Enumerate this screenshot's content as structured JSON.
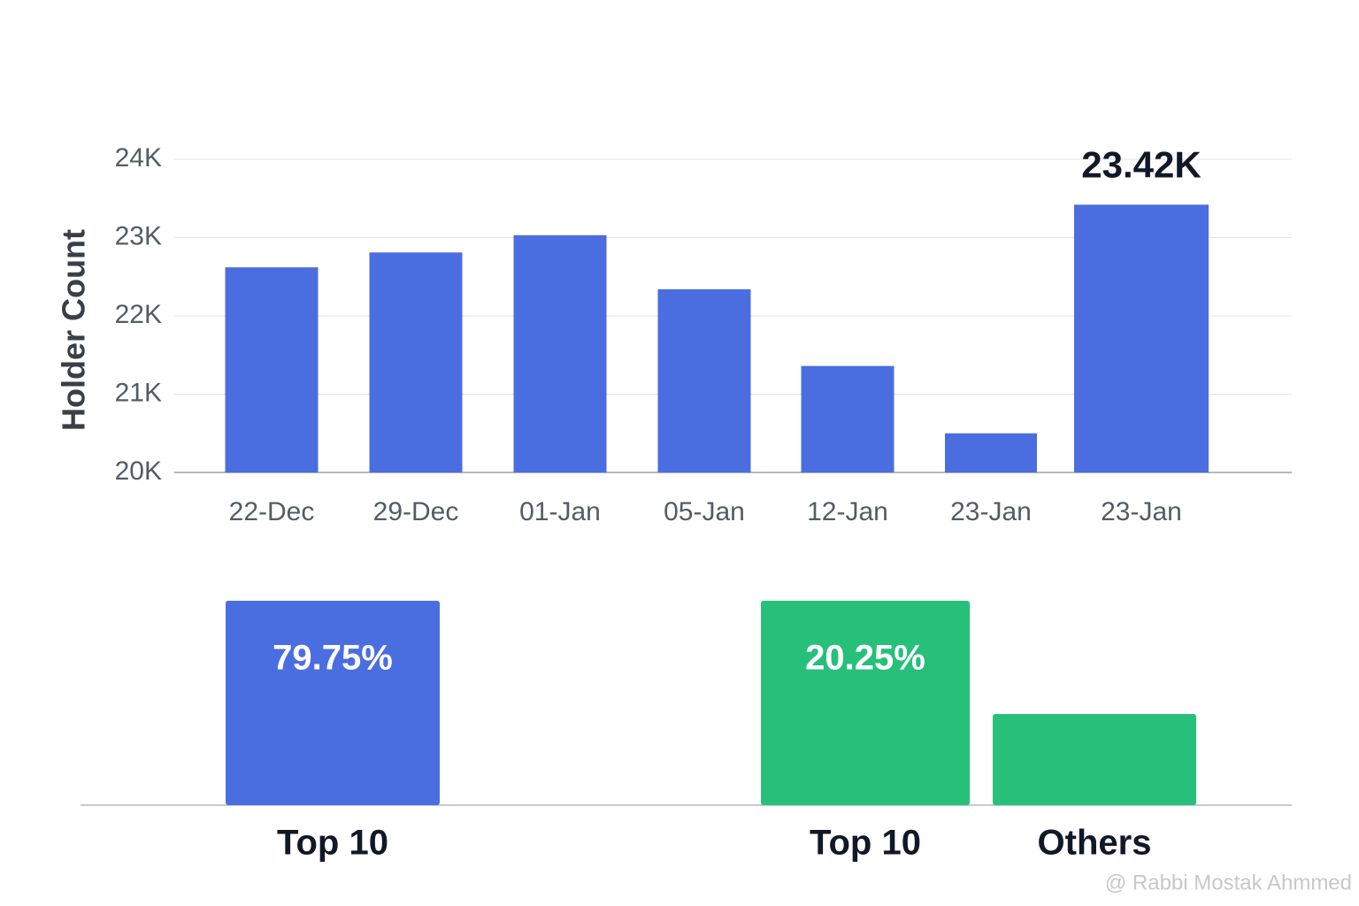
{
  "chart_data": [
    {
      "type": "bar",
      "y_label": "Holder Count",
      "categories": [
        "22-Dec",
        "29-Dec",
        "01-Jan",
        "05-Jan",
        "12-Jan",
        "23-Jan",
        "23-Jan"
      ],
      "values": [
        22620,
        22810,
        23030,
        22340,
        21360,
        20500,
        23420
      ],
      "value_labels": [
        null,
        null,
        null,
        null,
        null,
        null,
        "23.42K"
      ],
      "color": "#4a6ee0",
      "ylim": [
        20000,
        24000
      ],
      "yticks": [
        {
          "value": 20000,
          "label": "20K"
        },
        {
          "value": 21000,
          "label": "21K"
        },
        {
          "value": 22000,
          "label": "22K"
        },
        {
          "value": 23000,
          "label": "23K"
        },
        {
          "value": 24000,
          "label": "24K"
        }
      ],
      "grid": true
    },
    {
      "type": "bar",
      "categories": [
        "Top 10"
      ],
      "values": [
        79.75
      ],
      "value_labels": [
        "79.75%"
      ],
      "color": "#4a6ee0"
    },
    {
      "type": "bar",
      "categories": [
        "Top 10",
        "Others"
      ],
      "values": [
        20.25,
        9.03
      ],
      "value_labels": [
        "20.25%",
        null
      ],
      "color": "#27c07a"
    }
  ],
  "watermark": "@ Rabbi  Mostak Ahmmed"
}
